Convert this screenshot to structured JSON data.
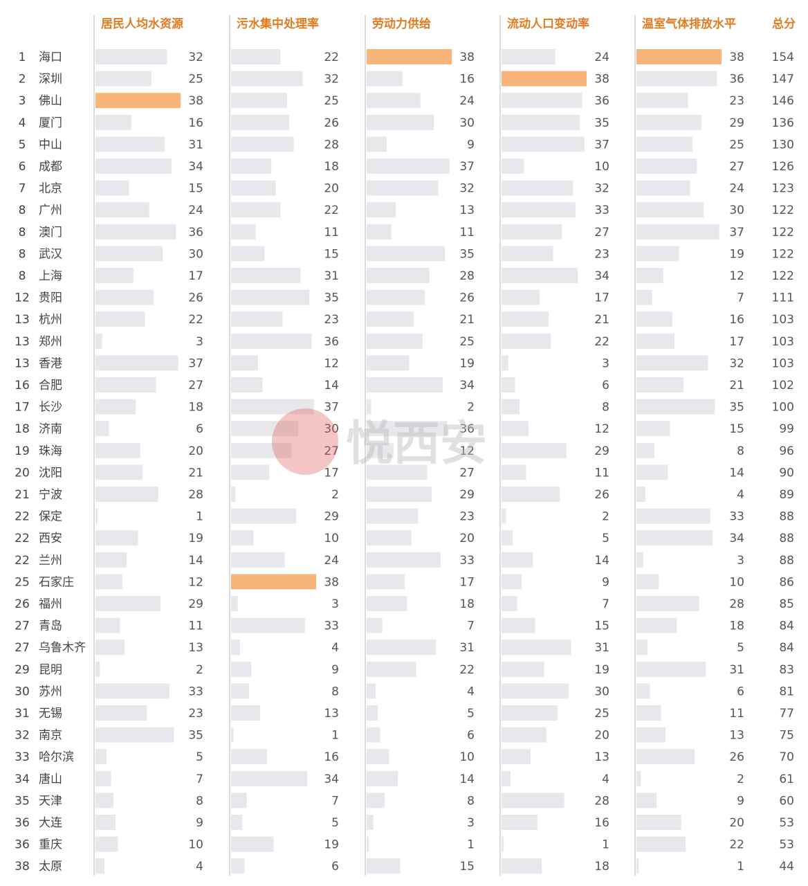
{
  "watermark": {
    "text": "悦西安"
  },
  "colors": {
    "bar": "#e8e8ec",
    "max_bar": "#f7b57a",
    "header": "#e07b22"
  },
  "chart_data": {
    "type": "bar",
    "total_header": "总分",
    "max_value": 38,
    "series": [
      {
        "name": "居民人均水资源",
        "values": [
          32,
          25,
          38,
          16,
          31,
          34,
          15,
          24,
          36,
          30,
          17,
          26,
          22,
          3,
          37,
          27,
          18,
          6,
          20,
          21,
          28,
          1,
          19,
          14,
          12,
          29,
          11,
          13,
          2,
          33,
          23,
          35,
          5,
          7,
          8,
          9,
          10,
          4
        ]
      },
      {
        "name": "污水集中处理率",
        "values": [
          22,
          32,
          25,
          26,
          28,
          18,
          20,
          22,
          11,
          15,
          31,
          35,
          23,
          36,
          12,
          14,
          37,
          30,
          27,
          17,
          2,
          29,
          10,
          24,
          38,
          3,
          33,
          4,
          9,
          8,
          13,
          1,
          16,
          34,
          7,
          5,
          19,
          6
        ]
      },
      {
        "name": "劳动力供给",
        "values": [
          38,
          16,
          24,
          30,
          9,
          37,
          32,
          13,
          11,
          35,
          28,
          26,
          21,
          25,
          19,
          34,
          2,
          36,
          12,
          27,
          29,
          23,
          20,
          33,
          17,
          18,
          7,
          31,
          22,
          4,
          5,
          6,
          10,
          14,
          8,
          3,
          1,
          15
        ]
      },
      {
        "name": "流动人口变动率",
        "values": [
          24,
          38,
          36,
          35,
          37,
          10,
          32,
          33,
          27,
          23,
          34,
          17,
          21,
          22,
          3,
          6,
          8,
          12,
          29,
          11,
          26,
          2,
          5,
          14,
          9,
          7,
          15,
          31,
          19,
          30,
          25,
          20,
          13,
          4,
          28,
          16,
          1,
          18
        ]
      },
      {
        "name": "温室气体排放水平",
        "values": [
          38,
          36,
          23,
          29,
          25,
          27,
          24,
          30,
          37,
          19,
          12,
          7,
          16,
          17,
          32,
          21,
          35,
          15,
          8,
          14,
          4,
          33,
          34,
          3,
          10,
          28,
          18,
          5,
          31,
          6,
          11,
          13,
          26,
          2,
          9,
          20,
          22,
          1
        ]
      }
    ],
    "rows": [
      {
        "rank": "1",
        "city": "海口",
        "total": "154"
      },
      {
        "rank": "2",
        "city": "深圳",
        "total": "147"
      },
      {
        "rank": "3",
        "city": "佛山",
        "total": "146"
      },
      {
        "rank": "4",
        "city": "厦门",
        "total": "136"
      },
      {
        "rank": "5",
        "city": "中山",
        "total": "130"
      },
      {
        "rank": "6",
        "city": "成都",
        "total": "126"
      },
      {
        "rank": "7",
        "city": "北京",
        "total": "123"
      },
      {
        "rank": "8",
        "city": "广州",
        "total": "122"
      },
      {
        "rank": "8",
        "city": "澳门",
        "total": "122"
      },
      {
        "rank": "8",
        "city": "武汉",
        "total": "122"
      },
      {
        "rank": "8",
        "city": "上海",
        "total": "122"
      },
      {
        "rank": "12",
        "city": "贵阳",
        "total": "111"
      },
      {
        "rank": "13",
        "city": "杭州",
        "total": "103"
      },
      {
        "rank": "13",
        "city": "郑州",
        "total": "103"
      },
      {
        "rank": "13",
        "city": "香港",
        "total": "103"
      },
      {
        "rank": "16",
        "city": "合肥",
        "total": "102"
      },
      {
        "rank": "17",
        "city": "长沙",
        "total": "100"
      },
      {
        "rank": "18",
        "city": "济南",
        "total": "99"
      },
      {
        "rank": "19",
        "city": "珠海",
        "total": "96"
      },
      {
        "rank": "20",
        "city": "沈阳",
        "total": "90"
      },
      {
        "rank": "21",
        "city": "宁波",
        "total": "89"
      },
      {
        "rank": "22",
        "city": "保定",
        "total": "88"
      },
      {
        "rank": "22",
        "city": "西安",
        "total": "88"
      },
      {
        "rank": "22",
        "city": "兰州",
        "total": "88"
      },
      {
        "rank": "25",
        "city": "石家庄",
        "total": "86"
      },
      {
        "rank": "26",
        "city": "福州",
        "total": "85"
      },
      {
        "rank": "27",
        "city": "青岛",
        "total": "84"
      },
      {
        "rank": "27",
        "city": "乌鲁木齐",
        "total": "84"
      },
      {
        "rank": "29",
        "city": "昆明",
        "total": "83"
      },
      {
        "rank": "30",
        "city": "苏州",
        "total": "81"
      },
      {
        "rank": "31",
        "city": "无锡",
        "total": "77"
      },
      {
        "rank": "32",
        "city": "南京",
        "total": "75"
      },
      {
        "rank": "33",
        "city": "哈尔滨",
        "total": "70"
      },
      {
        "rank": "34",
        "city": "唐山",
        "total": "61"
      },
      {
        "rank": "35",
        "city": "天津",
        "total": "60"
      },
      {
        "rank": "36",
        "city": "大连",
        "total": "53"
      },
      {
        "rank": "36",
        "city": "重庆",
        "total": "53"
      },
      {
        "rank": "38",
        "city": "太原",
        "total": "44"
      }
    ]
  }
}
